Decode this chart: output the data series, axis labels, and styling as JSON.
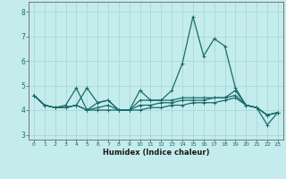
{
  "xlabel": "Humidex (Indice chaleur)",
  "background_color": "#c5ecec",
  "grid_color": "#a8d8d8",
  "line_color": "#1a6b6b",
  "x_values": [
    0,
    1,
    2,
    3,
    4,
    5,
    6,
    7,
    8,
    9,
    10,
    11,
    12,
    13,
    14,
    15,
    16,
    17,
    18,
    19,
    20,
    21,
    22,
    23
  ],
  "series1": [
    4.6,
    4.2,
    4.1,
    4.1,
    4.2,
    4.9,
    4.3,
    4.4,
    4.0,
    4.0,
    4.8,
    4.4,
    4.4,
    4.8,
    5.9,
    7.8,
    6.2,
    6.9,
    6.6,
    4.9,
    4.2,
    4.1,
    3.8,
    3.9
  ],
  "series2": [
    4.6,
    4.2,
    4.1,
    4.2,
    4.9,
    4.0,
    4.3,
    4.4,
    4.0,
    4.0,
    4.4,
    4.4,
    4.4,
    4.4,
    4.5,
    4.5,
    4.5,
    4.5,
    4.5,
    4.8,
    4.2,
    4.1,
    3.4,
    3.9
  ],
  "series3": [
    4.6,
    4.2,
    4.1,
    4.1,
    4.2,
    4.0,
    4.1,
    4.2,
    4.0,
    4.0,
    4.2,
    4.2,
    4.3,
    4.3,
    4.4,
    4.4,
    4.4,
    4.5,
    4.5,
    4.6,
    4.2,
    4.1,
    3.8,
    3.9
  ],
  "series4": [
    4.6,
    4.2,
    4.1,
    4.1,
    4.2,
    4.0,
    4.0,
    4.0,
    4.0,
    4.0,
    4.0,
    4.1,
    4.1,
    4.2,
    4.2,
    4.3,
    4.3,
    4.3,
    4.4,
    4.5,
    4.2,
    4.1,
    3.8,
    3.9
  ],
  "ylim": [
    2.8,
    8.4
  ],
  "xlim": [
    -0.5,
    23.5
  ],
  "yticks": [
    3,
    4,
    5,
    6,
    7,
    8
  ],
  "xticks": [
    0,
    1,
    2,
    3,
    4,
    5,
    6,
    7,
    8,
    9,
    10,
    11,
    12,
    13,
    14,
    15,
    16,
    17,
    18,
    19,
    20,
    21,
    22,
    23
  ]
}
